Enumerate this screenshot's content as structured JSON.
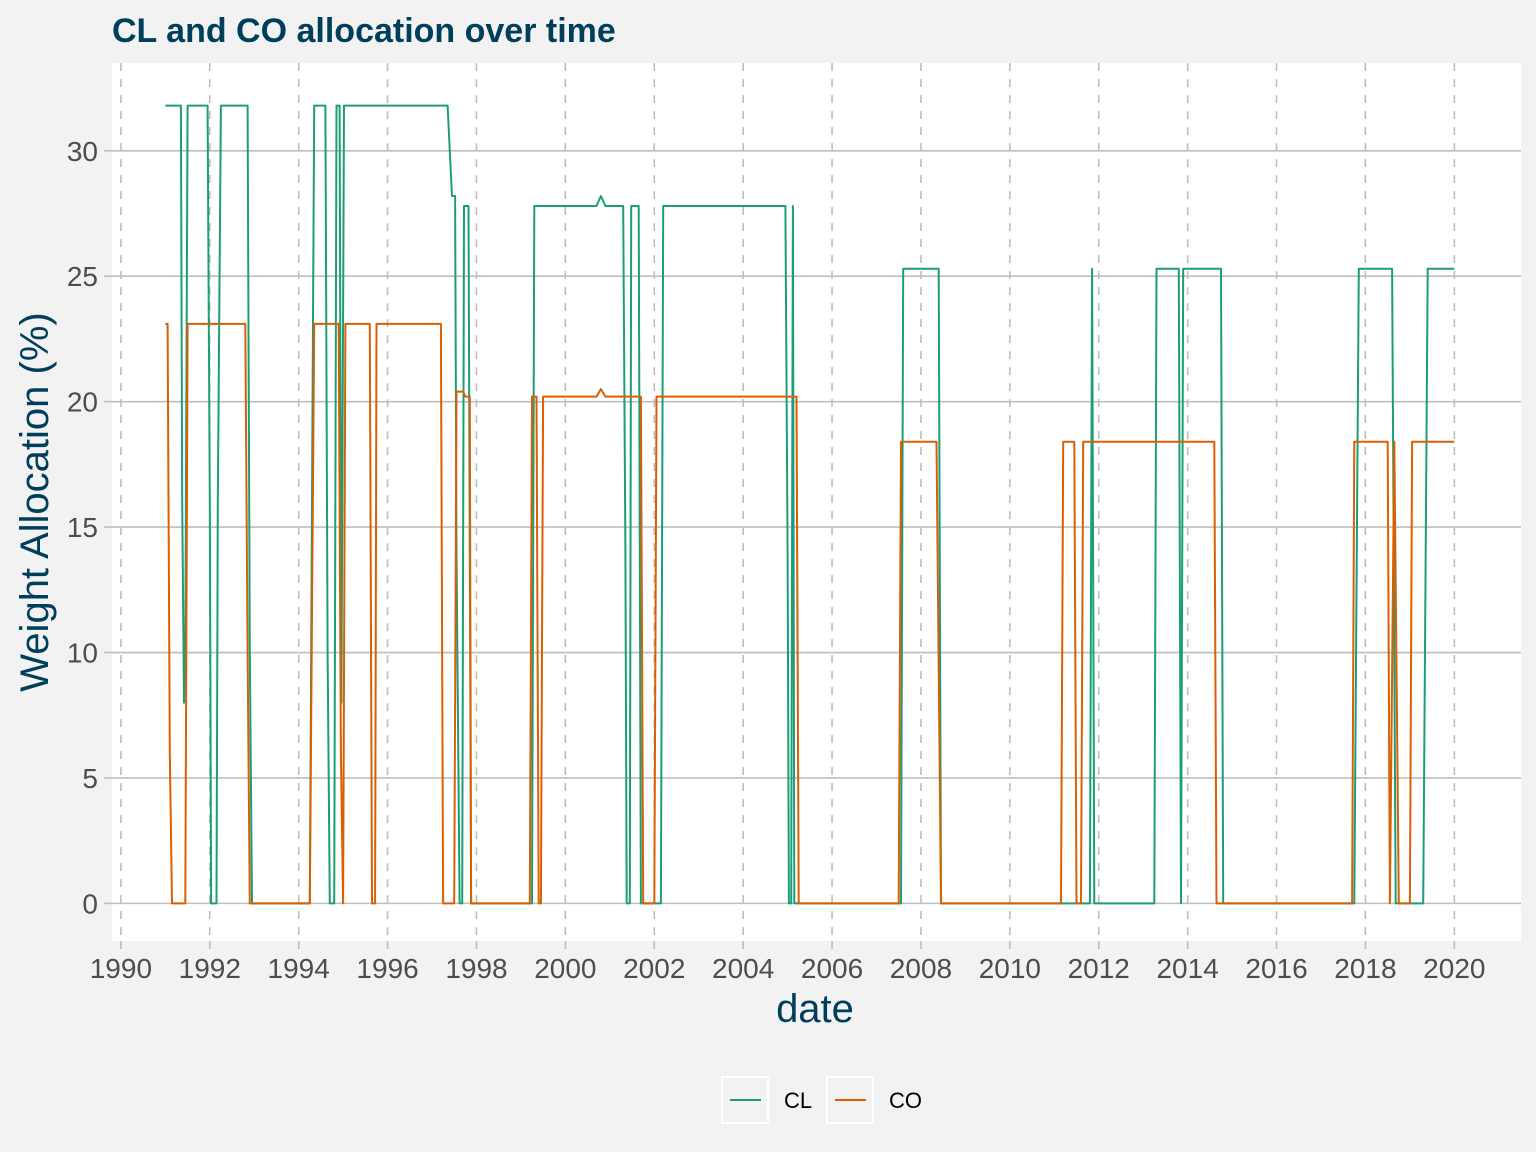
{
  "chart_data": {
    "type": "line",
    "title": "CL and CO allocation over time",
    "xlabel": "date",
    "ylabel": "Weight Allocation (%)",
    "xlim": [
      1989.8,
      2021.5
    ],
    "ylim": [
      -1.5,
      33.5
    ],
    "x_ticks": [
      1990,
      1992,
      1994,
      1996,
      1998,
      2000,
      2002,
      2004,
      2006,
      2008,
      2010,
      2012,
      2014,
      2016,
      2018,
      2020
    ],
    "x_tick_labels": [
      "1990",
      "1992",
      "1994",
      "1996",
      "1998",
      "2000",
      "2002",
      "2004",
      "2006",
      "2008",
      "2010",
      "2012",
      "2014",
      "2016",
      "2018",
      "2020"
    ],
    "y_ticks": [
      0,
      5,
      10,
      15,
      20,
      25,
      30
    ],
    "y_tick_labels": [
      "0",
      "5",
      "10",
      "15",
      "20",
      "25",
      "30"
    ],
    "grid": {
      "horizontal": "solid",
      "vertical": "dashed"
    },
    "legend_position": "bottom",
    "colors": {
      "background": "#f2f2f2",
      "panel": "#ffffff",
      "grid_major": "#bebebe",
      "grid_vertical": "#bebebe",
      "title": "#003f5c",
      "cl": "#1b9e77",
      "co": "#d95f02"
    },
    "series": [
      {
        "name": "CL",
        "color": "#1b9e77",
        "points": [
          [
            1991.0,
            31.8
          ],
          [
            1991.35,
            31.8
          ],
          [
            1991.38,
            16
          ],
          [
            1991.42,
            8
          ],
          [
            1991.45,
            10
          ],
          [
            1991.5,
            31.8
          ],
          [
            1991.95,
            31.8
          ],
          [
            1992.0,
            16
          ],
          [
            1992.03,
            0
          ],
          [
            1992.15,
            0
          ],
          [
            1992.18,
            16
          ],
          [
            1992.25,
            31.8
          ],
          [
            1992.85,
            31.8
          ],
          [
            1992.9,
            10
          ],
          [
            1992.95,
            0
          ],
          [
            1994.25,
            0
          ],
          [
            1994.3,
            16
          ],
          [
            1994.35,
            31.8
          ],
          [
            1994.6,
            31.8
          ],
          [
            1994.65,
            10
          ],
          [
            1994.7,
            0
          ],
          [
            1994.8,
            0
          ],
          [
            1994.85,
            31.8
          ],
          [
            1994.92,
            31.8
          ],
          [
            1994.96,
            8
          ],
          [
            1995.02,
            31.8
          ],
          [
            1997.35,
            31.8
          ],
          [
            1997.45,
            28.2
          ],
          [
            1997.52,
            28.2
          ],
          [
            1997.55,
            14
          ],
          [
            1997.62,
            0
          ],
          [
            1997.68,
            0
          ],
          [
            1997.72,
            27.8
          ],
          [
            1997.82,
            27.8
          ],
          [
            1997.88,
            0
          ],
          [
            1999.25,
            0
          ],
          [
            1999.3,
            27.8
          ],
          [
            2000.7,
            27.8
          ],
          [
            2000.8,
            28.2
          ],
          [
            2000.9,
            27.8
          ],
          [
            2001.3,
            27.8
          ],
          [
            2001.35,
            14
          ],
          [
            2001.38,
            0
          ],
          [
            2001.45,
            0
          ],
          [
            2001.48,
            27.8
          ],
          [
            2001.65,
            27.8
          ],
          [
            2001.7,
            0
          ],
          [
            2002.15,
            0
          ],
          [
            2002.2,
            27.8
          ],
          [
            2004.95,
            27.8
          ],
          [
            2005.0,
            14
          ],
          [
            2005.03,
            0
          ],
          [
            2005.08,
            0
          ],
          [
            2005.12,
            27.8
          ],
          [
            2005.15,
            0
          ],
          [
            2007.55,
            0
          ],
          [
            2007.6,
            25.3
          ],
          [
            2008.4,
            25.3
          ],
          [
            2008.45,
            0
          ],
          [
            2011.8,
            0
          ],
          [
            2011.85,
            25.3
          ],
          [
            2011.9,
            0
          ],
          [
            2013.25,
            0
          ],
          [
            2013.3,
            25.3
          ],
          [
            2013.8,
            25.3
          ],
          [
            2013.85,
            0
          ],
          [
            2013.9,
            25.3
          ],
          [
            2014.75,
            25.3
          ],
          [
            2014.8,
            0
          ],
          [
            2017.75,
            0
          ],
          [
            2017.85,
            25.3
          ],
          [
            2018.6,
            25.3
          ],
          [
            2018.65,
            10
          ],
          [
            2018.68,
            0
          ],
          [
            2019.3,
            0
          ],
          [
            2019.4,
            25.3
          ],
          [
            2020.0,
            25.3
          ]
        ]
      },
      {
        "name": "CO",
        "color": "#d95f02",
        "points": [
          [
            1991.0,
            23.1
          ],
          [
            1991.05,
            23.1
          ],
          [
            1991.1,
            6
          ],
          [
            1991.15,
            0
          ],
          [
            1991.45,
            0
          ],
          [
            1991.5,
            23.1
          ],
          [
            1992.8,
            23.1
          ],
          [
            1992.85,
            10
          ],
          [
            1992.9,
            0
          ],
          [
            1994.25,
            0
          ],
          [
            1994.35,
            23.1
          ],
          [
            1994.8,
            23.1
          ],
          [
            1994.9,
            23.1
          ],
          [
            1994.95,
            6
          ],
          [
            1995.0,
            0
          ],
          [
            1995.05,
            23.1
          ],
          [
            1995.6,
            23.1
          ],
          [
            1995.65,
            0
          ],
          [
            1995.72,
            0
          ],
          [
            1995.75,
            23.1
          ],
          [
            1997.2,
            23.1
          ],
          [
            1997.25,
            0
          ],
          [
            1997.5,
            0
          ],
          [
            1997.55,
            20.4
          ],
          [
            1997.7,
            20.4
          ],
          [
            1997.75,
            20.2
          ],
          [
            1997.85,
            20.2
          ],
          [
            1997.88,
            0
          ],
          [
            1999.2,
            0
          ],
          [
            1999.25,
            20.2
          ],
          [
            1999.35,
            20.2
          ],
          [
            1999.4,
            0
          ],
          [
            1999.45,
            0
          ],
          [
            1999.5,
            20.2
          ],
          [
            2000.7,
            20.2
          ],
          [
            2000.8,
            20.5
          ],
          [
            2000.9,
            20.2
          ],
          [
            2001.7,
            20.2
          ],
          [
            2001.75,
            0
          ],
          [
            2002.0,
            0
          ],
          [
            2002.05,
            20.2
          ],
          [
            2005.2,
            20.2
          ],
          [
            2005.25,
            0
          ],
          [
            2007.5,
            0
          ],
          [
            2007.55,
            18.4
          ],
          [
            2008.35,
            18.4
          ],
          [
            2008.45,
            0
          ],
          [
            2011.15,
            0
          ],
          [
            2011.2,
            18.4
          ],
          [
            2011.45,
            18.4
          ],
          [
            2011.5,
            0
          ],
          [
            2011.6,
            0
          ],
          [
            2011.65,
            18.4
          ],
          [
            2014.6,
            18.4
          ],
          [
            2014.65,
            0
          ],
          [
            2017.7,
            0
          ],
          [
            2017.75,
            18.4
          ],
          [
            2018.5,
            18.4
          ],
          [
            2018.55,
            0
          ],
          [
            2018.65,
            18.4
          ],
          [
            2018.75,
            0
          ],
          [
            2019.0,
            0
          ],
          [
            2019.05,
            18.4
          ],
          [
            2020.0,
            18.4
          ]
        ]
      }
    ]
  }
}
